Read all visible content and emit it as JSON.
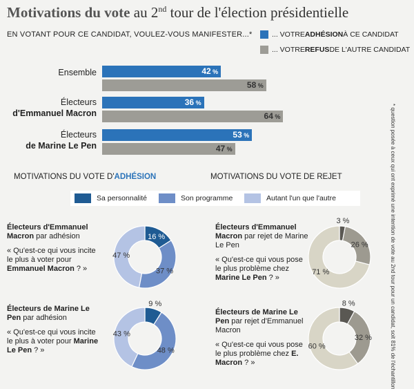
{
  "header": {
    "title_bold": "Motivations du vote",
    "title_rest_1": "au 2",
    "title_sup": "nd",
    "title_rest_2": " tour de l'élection  présidentielle",
    "question": "EN VOTANT POUR CE CANDIDAT, VOULEZ-VOUS MANIFESTER...*"
  },
  "legend_top": [
    {
      "pre": "... VOTRE ",
      "bold": "ADHÉSION",
      "post": " À CE CANDIDAT",
      "color": "#2b73b9"
    },
    {
      "pre": "... VOTRE ",
      "bold": "REFUS",
      "post": " DE L'AUTRE CANDIDAT",
      "color": "#9d9c96"
    }
  ],
  "bar_groups": [
    {
      "label_1": "Ensemble",
      "label_2": ""
    },
    {
      "label_1": "Électeurs",
      "label_2": "d'Emmanuel Macron"
    },
    {
      "label_1": "Électeurs",
      "label_2": "de Marine Le Pen"
    }
  ],
  "sections": {
    "adhesion_title_pre": "MOTIVATIONS DU VOTE D'",
    "adhesion_title_bold": "ADHÉSION",
    "rejet_title": "MOTIVATIONS DU VOTE DE REJET"
  },
  "mid_legend": [
    {
      "label": "Sa personnalité",
      "color": "#1f5b93"
    },
    {
      "label": "Son programme",
      "color": "#6e8ec7"
    },
    {
      "label": "Autant l'un que l'autre",
      "color": "#b4c3e4"
    }
  ],
  "blocks": {
    "a1": {
      "bold": "Électeurs d'Emmanuel Macron",
      "rest": " par adhésion",
      "q_pre": "« Qu'est-ce qui vous incite le plus à voter pour ",
      "q_bold": "Emmanuel Macron",
      "q_post": " ? »"
    },
    "a2": {
      "bold": "Électeurs de Marine Le Pen",
      "rest": " par adhésion",
      "q_pre": "« Qu'est-ce qui vous incite le plus à voter pour ",
      "q_bold": "Marine Le Pen",
      "q_post": " ? »"
    },
    "r1": {
      "bold": "Électeurs d'Emmanuel Macron",
      "rest": " par rejet de Marine Le Pen",
      "q_pre": "« Qu'est-ce qui vous pose le plus problème chez ",
      "q_bold": "Marine Le Pen",
      "q_post": " ? »"
    },
    "r2": {
      "bold": "Électeurs de Marine Le Pen",
      "rest": " par rejet d'Emmanuel Macron",
      "q_pre": "« Qu'est-ce qui vous pose le plus problème chez ",
      "q_bold": "E. Macron",
      "q_post": " ? »"
    }
  },
  "side_note": "* question posée à ceux qui ont exprimé une intention de vote au 2nd tour pour un candidat, soit 81% de l'échantillon",
  "chart_data": [
    {
      "type": "bar",
      "orientation": "horizontal",
      "categories": [
        "Ensemble",
        "Électeurs d'Emmanuel Macron",
        "Électeurs de Marine Le Pen"
      ],
      "series": [
        {
          "name": "... VOTRE ADHÉSION À CE CANDIDAT",
          "values": [
            42,
            36,
            53
          ],
          "color": "#2b73b9"
        },
        {
          "name": "... VOTRE REFUS DE L'AUTRE CANDIDAT",
          "values": [
            58,
            64,
            47
          ],
          "color": "#9d9c96"
        }
      ],
      "unit": "%",
      "xlim": [
        0,
        100
      ]
    },
    {
      "type": "pie",
      "id": "a1",
      "labels": [
        "Sa personnalité",
        "Son programme",
        "Autant l'un que l'autre"
      ],
      "values": [
        16,
        37,
        47
      ],
      "colors": [
        "#1f5b93",
        "#6e8ec7",
        "#b4c3e4"
      ]
    },
    {
      "type": "pie",
      "id": "a2",
      "labels": [
        "Sa personnalité",
        "Son programme",
        "Autant l'un que l'autre"
      ],
      "values": [
        9,
        48,
        43
      ],
      "colors": [
        "#1f5b93",
        "#6e8ec7",
        "#b4c3e4"
      ]
    },
    {
      "type": "pie",
      "id": "r1",
      "labels": [
        "Sa personnalité",
        "Son programme",
        "Autant l'un que l'autre"
      ],
      "values": [
        3,
        26,
        71
      ],
      "colors": [
        "#5a5853",
        "#9d9a90",
        "#d8d5c6"
      ]
    },
    {
      "type": "pie",
      "id": "r2",
      "labels": [
        "Sa personnalité",
        "Son programme",
        "Autant l'un que l'autre"
      ],
      "values": [
        8,
        32,
        60
      ],
      "colors": [
        "#5a5853",
        "#9d9a90",
        "#d8d5c6"
      ]
    }
  ]
}
